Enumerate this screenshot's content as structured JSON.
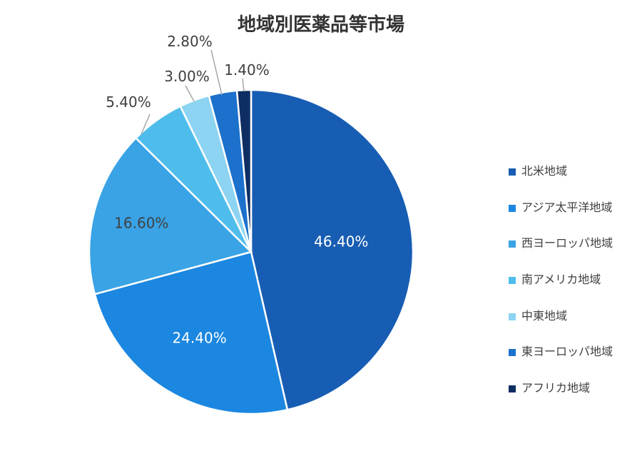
{
  "chart_data": {
    "type": "pie",
    "title": "地域別医薬品等市場",
    "categories": [
      "北米地域",
      "アジア太平洋地域",
      "西ヨーロッパ地域",
      "南アメリカ地域",
      "中東地域",
      "東ヨーロッパ地域",
      "アフリカ地域"
    ],
    "values": [
      46.4,
      24.4,
      16.6,
      5.4,
      3.0,
      2.8,
      1.4
    ],
    "data_labels": [
      "46.40%",
      "24.40%",
      "16.60%",
      "5.40%",
      "3.00%",
      "2.80%",
      "1.40%"
    ],
    "colors": [
      "#175db3",
      "#1b87e0",
      "#39a3e6",
      "#4fbdeb",
      "#8dd3f2",
      "#1c71cc",
      "#0e2d63"
    ],
    "legend_position": "right"
  }
}
